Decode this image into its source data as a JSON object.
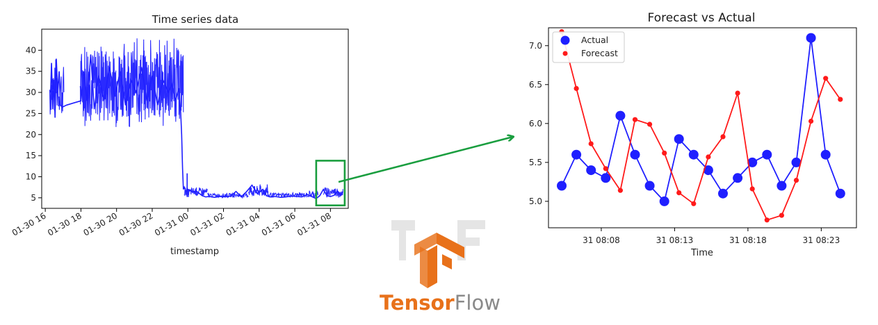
{
  "colors": {
    "actual": "#1f1fff",
    "forecast": "#ff1a1a",
    "highlight": "#1a9e3f",
    "tf_orange": "#e8711a",
    "tf_gray": "#8a8a8a"
  },
  "logo": {
    "word1": "Tensor",
    "word2": "Flow",
    "icon": "tensorflow-logo-icon"
  },
  "chart_data": [
    {
      "type": "line",
      "title": "Time series data",
      "xlabel": "timestamp",
      "ylabel": "",
      "xlim": [
        -0.2,
        17.0
      ],
      "ylim": [
        2.5,
        45
      ],
      "x_ticks": [
        0,
        2,
        4,
        6,
        8,
        10,
        12,
        14,
        16
      ],
      "x_tick_labels": [
        "01-30 16",
        "01-30 18",
        "01-30 20",
        "01-30 22",
        "01-31 00",
        "01-31 02",
        "01-31 04",
        "01-31 06",
        "01-31 08"
      ],
      "y_ticks": [
        5,
        10,
        15,
        20,
        25,
        30,
        35,
        40
      ],
      "highlight_window": {
        "x": [
          15.2,
          16.8
        ],
        "y": [
          3.2,
          13.8
        ]
      },
      "series": [
        {
          "color": "#1f1fff",
          "x": [
            0.3,
            0.35,
            0.42,
            0.48,
            0.55,
            0.62,
            0.7,
            0.78,
            0.85,
            0.95,
            1.2,
            1.6,
            2.0,
            2.15,
            2.35,
            2.55,
            2.75,
            3.0,
            3.3,
            3.6,
            3.9,
            4.2,
            4.5,
            4.8,
            5.1,
            5.4,
            5.7,
            6.0,
            6.3,
            6.6,
            6.9,
            7.1,
            7.3,
            7.5,
            7.6,
            7.65,
            7.7,
            7.75,
            7.8,
            7.9,
            8.0,
            8.2,
            8.5,
            8.8,
            9.0,
            9.2,
            9.5,
            9.8,
            10.1,
            10.4,
            10.7,
            11.0,
            11.3,
            11.6,
            11.9,
            12.2,
            12.4,
            12.6,
            12.9,
            13.2,
            13.5,
            13.8,
            14.1,
            14.4,
            14.7,
            15.0,
            15.2,
            15.4,
            15.6,
            15.8,
            16.0,
            16.2,
            16.4,
            16.6,
            16.7
          ],
          "y": [
            30,
            37,
            26,
            33,
            24,
            38,
            30,
            35,
            27,
            26.5,
            27,
            27.5,
            28,
            35,
            28,
            39,
            26,
            34,
            28,
            36,
            29,
            35,
            27,
            33,
            30,
            36,
            28,
            34,
            27,
            33,
            30,
            32,
            28,
            31,
            25,
            20,
            12,
            7,
            7.5,
            6.5,
            7,
            6.5,
            6.5,
            5.5,
            5.2,
            5.3,
            5.1,
            5.3,
            5.2,
            5.4,
            6.5,
            5.2,
            6.5,
            8,
            6,
            7,
            5.5,
            5.2,
            5.3,
            5.1,
            5.2,
            5.4,
            5.3,
            5.2,
            5.8,
            5.2,
            4.8,
            5.5,
            7,
            5.5,
            5.3,
            5.6,
            6.6,
            5.6,
            6.5
          ],
          "noise_segments": [
            {
              "x0": 0.25,
              "x1": 1.05,
              "lo": 23,
              "hi": 38.5,
              "n": 32
            },
            {
              "x0": 1.95,
              "x1": 7.75,
              "lo": 21.5,
              "hi": 43,
              "n": 420
            },
            {
              "x0": 7.8,
              "x1": 9.1,
              "lo": 5.3,
              "hi": 7.5,
              "n": 70
            },
            {
              "x0": 9.1,
              "x1": 11.4,
              "lo": 5.0,
              "hi": 6.2,
              "n": 90
            },
            {
              "x0": 11.4,
              "x1": 12.5,
              "lo": 5.0,
              "hi": 8.2,
              "n": 70
            },
            {
              "x0": 12.5,
              "x1": 14.8,
              "lo": 5.0,
              "hi": 6.3,
              "n": 90
            },
            {
              "x0": 14.8,
              "x1": 15.3,
              "lo": 4.8,
              "hi": 6.8,
              "n": 30
            },
            {
              "x0": 15.6,
              "x1": 16.7,
              "lo": 5.0,
              "hi": 7.8,
              "n": 45
            }
          ],
          "spikes": [
            {
              "x": 7.96,
              "y": 10.8
            },
            {
              "x": 8.03,
              "y": 5.6
            }
          ]
        }
      ]
    },
    {
      "type": "line",
      "title": "Forecast vs Actual",
      "xlabel": "Time",
      "ylabel": "",
      "xlim": [
        0,
        21
      ],
      "ylim": [
        4.66,
        7.23
      ],
      "x_ticks": [
        3.6,
        8.6,
        13.6,
        18.6
      ],
      "x_tick_labels": [
        "31 08:08",
        "31 08:13",
        "31 08:18",
        "31 08:23"
      ],
      "y_ticks": [
        5.0,
        5.5,
        6.0,
        6.5,
        7.0
      ],
      "y_tick_labels": [
        "5.0",
        "5.5",
        "6.0",
        "6.5",
        "7.0"
      ],
      "legend": "top-left",
      "series": [
        {
          "name": "Actual",
          "color": "#1f1fff",
          "marker": "large-dot",
          "x": [
            0.9,
            1.9,
            2.9,
            3.9,
            4.9,
            5.9,
            6.9,
            7.9,
            8.9,
            9.9,
            10.9,
            11.9,
            12.9,
            13.9,
            14.9,
            15.9,
            16.9,
            17.9,
            18.9,
            19.9
          ],
          "y": [
            5.2,
            5.6,
            5.4,
            5.3,
            6.1,
            5.6,
            5.2,
            5.0,
            5.8,
            5.6,
            5.4,
            5.1,
            5.3,
            5.5,
            5.6,
            5.2,
            5.5,
            7.1,
            5.6,
            5.1
          ]
        },
        {
          "name": "Forecast",
          "color": "#ff1a1a",
          "marker": "small-dot",
          "x": [
            0.9,
            1.9,
            2.9,
            3.9,
            4.9,
            5.9,
            6.9,
            7.9,
            8.9,
            9.9,
            10.9,
            11.9,
            12.9,
            13.9,
            14.9,
            15.9,
            16.9,
            17.9,
            18.9,
            19.9
          ],
          "y": [
            7.18,
            6.45,
            5.74,
            5.42,
            5.14,
            6.05,
            5.99,
            5.62,
            5.11,
            4.97,
            5.57,
            5.83,
            6.39,
            5.16,
            4.76,
            4.82,
            5.27,
            6.03,
            6.58,
            6.31
          ]
        }
      ]
    }
  ]
}
